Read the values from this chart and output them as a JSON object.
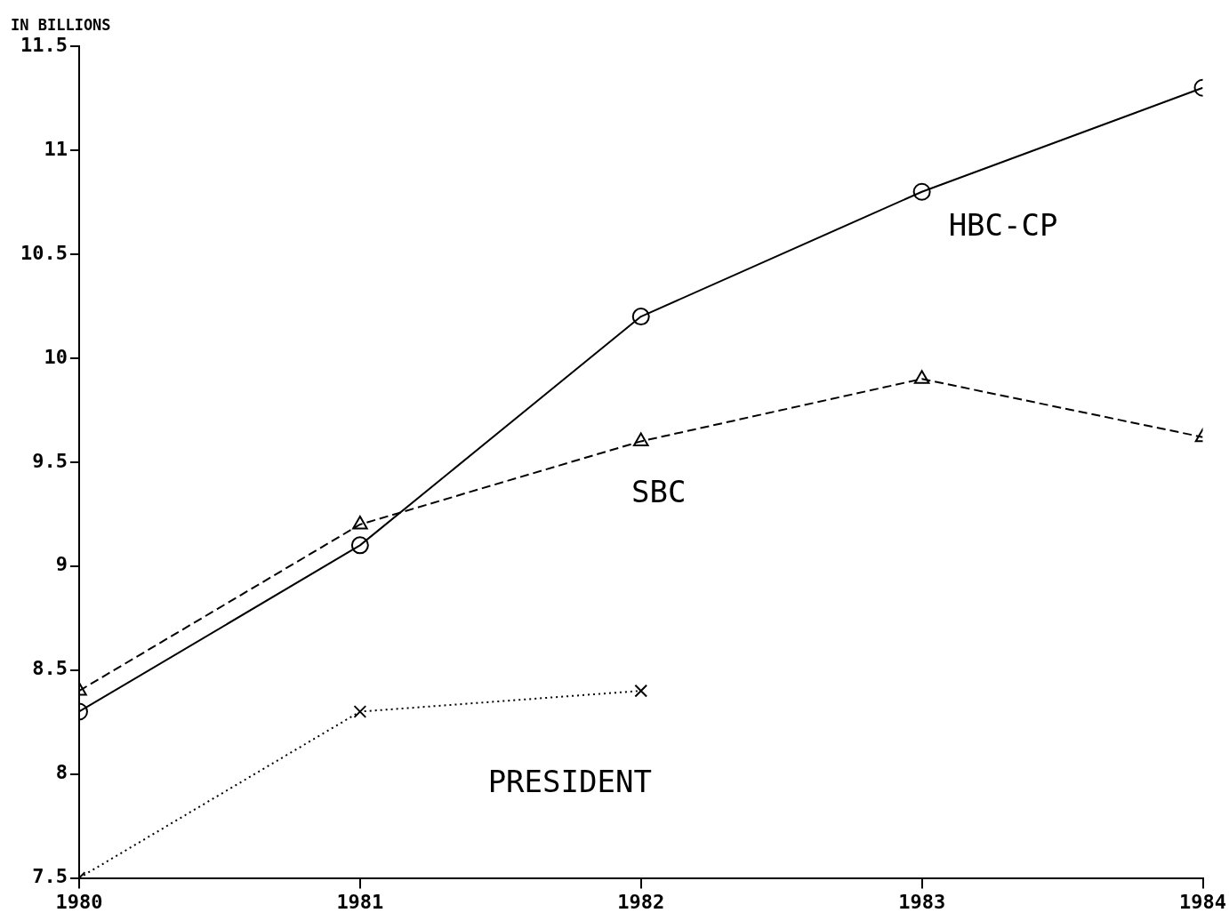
{
  "chart_data": {
    "type": "line",
    "ylabel": "IN BILLIONS",
    "x": [
      1980,
      1981,
      1982,
      1983,
      1984
    ],
    "series": [
      {
        "name": "HBC-CP",
        "color": "#000000",
        "values": [
          8.3,
          9.1,
          10.2,
          10.8,
          11.3
        ],
        "marker": "circle",
        "line_style": "solid"
      },
      {
        "name": "SBC",
        "color": "#000000",
        "values": [
          8.4,
          9.2,
          9.6,
          9.9,
          9.62
        ],
        "marker": "triangle",
        "line_style": "dashed"
      },
      {
        "name": "PRESIDENT",
        "color": "#000000",
        "values": [
          7.5,
          8.3,
          8.4,
          null,
          null
        ],
        "marker": "cross",
        "line_style": "dotted"
      }
    ],
    "xlim": [
      1980,
      1984
    ],
    "xticks": [
      1980,
      1981,
      1982,
      1983,
      1984
    ],
    "ylim": [
      7.5,
      11.5
    ],
    "yticks": [
      7.5,
      8,
      8.5,
      9,
      9.5,
      10,
      10.5,
      11,
      11.5
    ],
    "grid": false,
    "legend": false
  }
}
